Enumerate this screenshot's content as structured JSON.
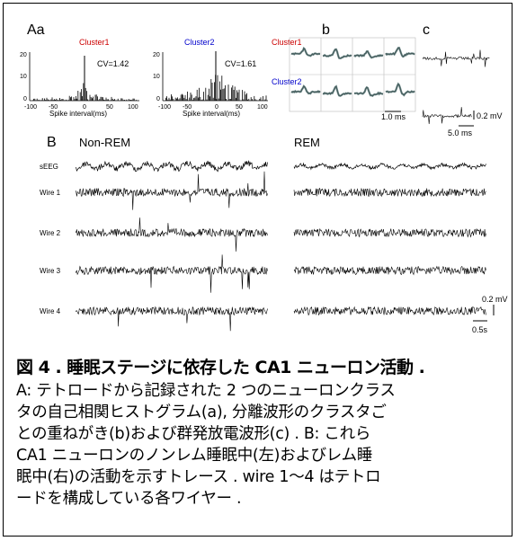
{
  "panels": {
    "Aa": {
      "label": "Aa",
      "histograms": [
        {
          "name": "Cluster1",
          "color": "#cc0000",
          "cv": "CV=1.42",
          "yticks": [
            "20",
            "10",
            "0"
          ],
          "xticks": [
            "-100",
            "-50",
            "0",
            "50",
            "100"
          ],
          "xlabel": "Spike interval(ms)"
        },
        {
          "name": "Cluster2",
          "color": "#0000cc",
          "cv": "CV=1.61",
          "yticks": [
            "20",
            "10",
            "0"
          ],
          "xticks": [
            "-100",
            "-50",
            "0",
            "50",
            "100"
          ],
          "xlabel": "Spike interval(ms)"
        }
      ]
    },
    "b": {
      "label": "b",
      "row_labels": [
        {
          "text": "Cluster1",
          "color": "#cc0000"
        },
        {
          "text": "Cluster2",
          "color": "#0000cc"
        }
      ],
      "scale": "1.0 ms"
    },
    "c": {
      "label": "c",
      "scale_v": "0.2 mV",
      "scale_t": "5.0 ms"
    },
    "B": {
      "label": "B",
      "conditions": [
        "Non-REM",
        "REM"
      ],
      "rows": [
        "sEEG",
        "Wire 1",
        "Wire 2",
        "Wire 3",
        "Wire 4"
      ],
      "scale_v": "0.2 mV",
      "scale_t": "0.5s"
    }
  },
  "caption": {
    "title": "図 4 . 睡眠ステージに依存した CA1 ニューロン活動 .",
    "lines": [
      "A: テトロードから記録された 2 つのニューロンクラス",
      "タの自己相関ヒストグラム(a), 分離波形のクラスタご",
      "との重ねがき(b)および群発放電波形(c) . B: これら",
      "CA1 ニューロンのノンレム睡眠中(左)およびレム睡",
      "眠中(右)の活動を示すトレース . wire 1～4 はテトロ",
      "ードを構成している各ワイヤー ."
    ]
  }
}
